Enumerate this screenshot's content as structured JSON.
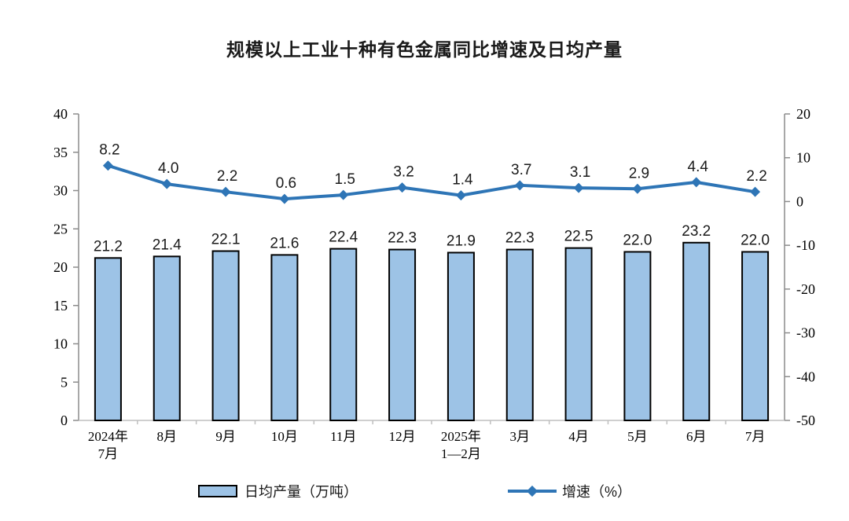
{
  "title": "规模以上工业十种有色金属同比增速及日均产量",
  "chart_data": {
    "type": "bar",
    "subtype": "combo-bar-line-dual-axis",
    "categories": [
      "2024年\n7月",
      "8月",
      "9月",
      "10月",
      "11月",
      "12月",
      "2025年\n1—2月",
      "3月",
      "4月",
      "5月",
      "6月",
      "7月"
    ],
    "series": [
      {
        "name": "日均产量（万吨）",
        "type": "bar",
        "axis": "left",
        "values": [
          21.2,
          21.4,
          22.1,
          21.6,
          22.4,
          22.3,
          21.9,
          22.3,
          22.5,
          22.0,
          23.2,
          22.0
        ],
        "labels": [
          "21.2",
          "21.4",
          "22.1",
          "21.6",
          "22.4",
          "22.3",
          "21.9",
          "22.3",
          "22.5",
          "22.0",
          "23.2",
          "22.0"
        ],
        "fill": "#9DC3E6",
        "stroke": "#000000"
      },
      {
        "name": "增速（%）",
        "type": "line",
        "axis": "right",
        "values": [
          8.2,
          4.0,
          2.2,
          0.6,
          1.5,
          3.2,
          1.4,
          3.7,
          3.1,
          2.9,
          4.4,
          2.2
        ],
        "labels": [
          "8.2",
          "4.0",
          "2.2",
          "0.6",
          "1.5",
          "3.2",
          "1.4",
          "3.7",
          "3.1",
          "2.9",
          "4.4",
          "2.2"
        ],
        "color": "#2E75B6"
      }
    ],
    "left_axis": {
      "min": 0,
      "max": 40,
      "step": 5,
      "tick_labels": [
        "0",
        "5",
        "10",
        "15",
        "20",
        "25",
        "30",
        "35",
        "40"
      ]
    },
    "right_axis": {
      "min": -50,
      "max": 20,
      "step": 10,
      "tick_labels": [
        "-50",
        "-40",
        "-30",
        "-20",
        "-10",
        "0",
        "10",
        "20"
      ]
    },
    "grid": false,
    "legend_position": "bottom",
    "label_color": "#1a1a1a",
    "axis_line_color": "#8c8c8c",
    "bottom_axis_color": "#bfbfbf"
  },
  "legend": {
    "bar_label": "日均产量（万吨）",
    "line_label": "增速（%）"
  }
}
